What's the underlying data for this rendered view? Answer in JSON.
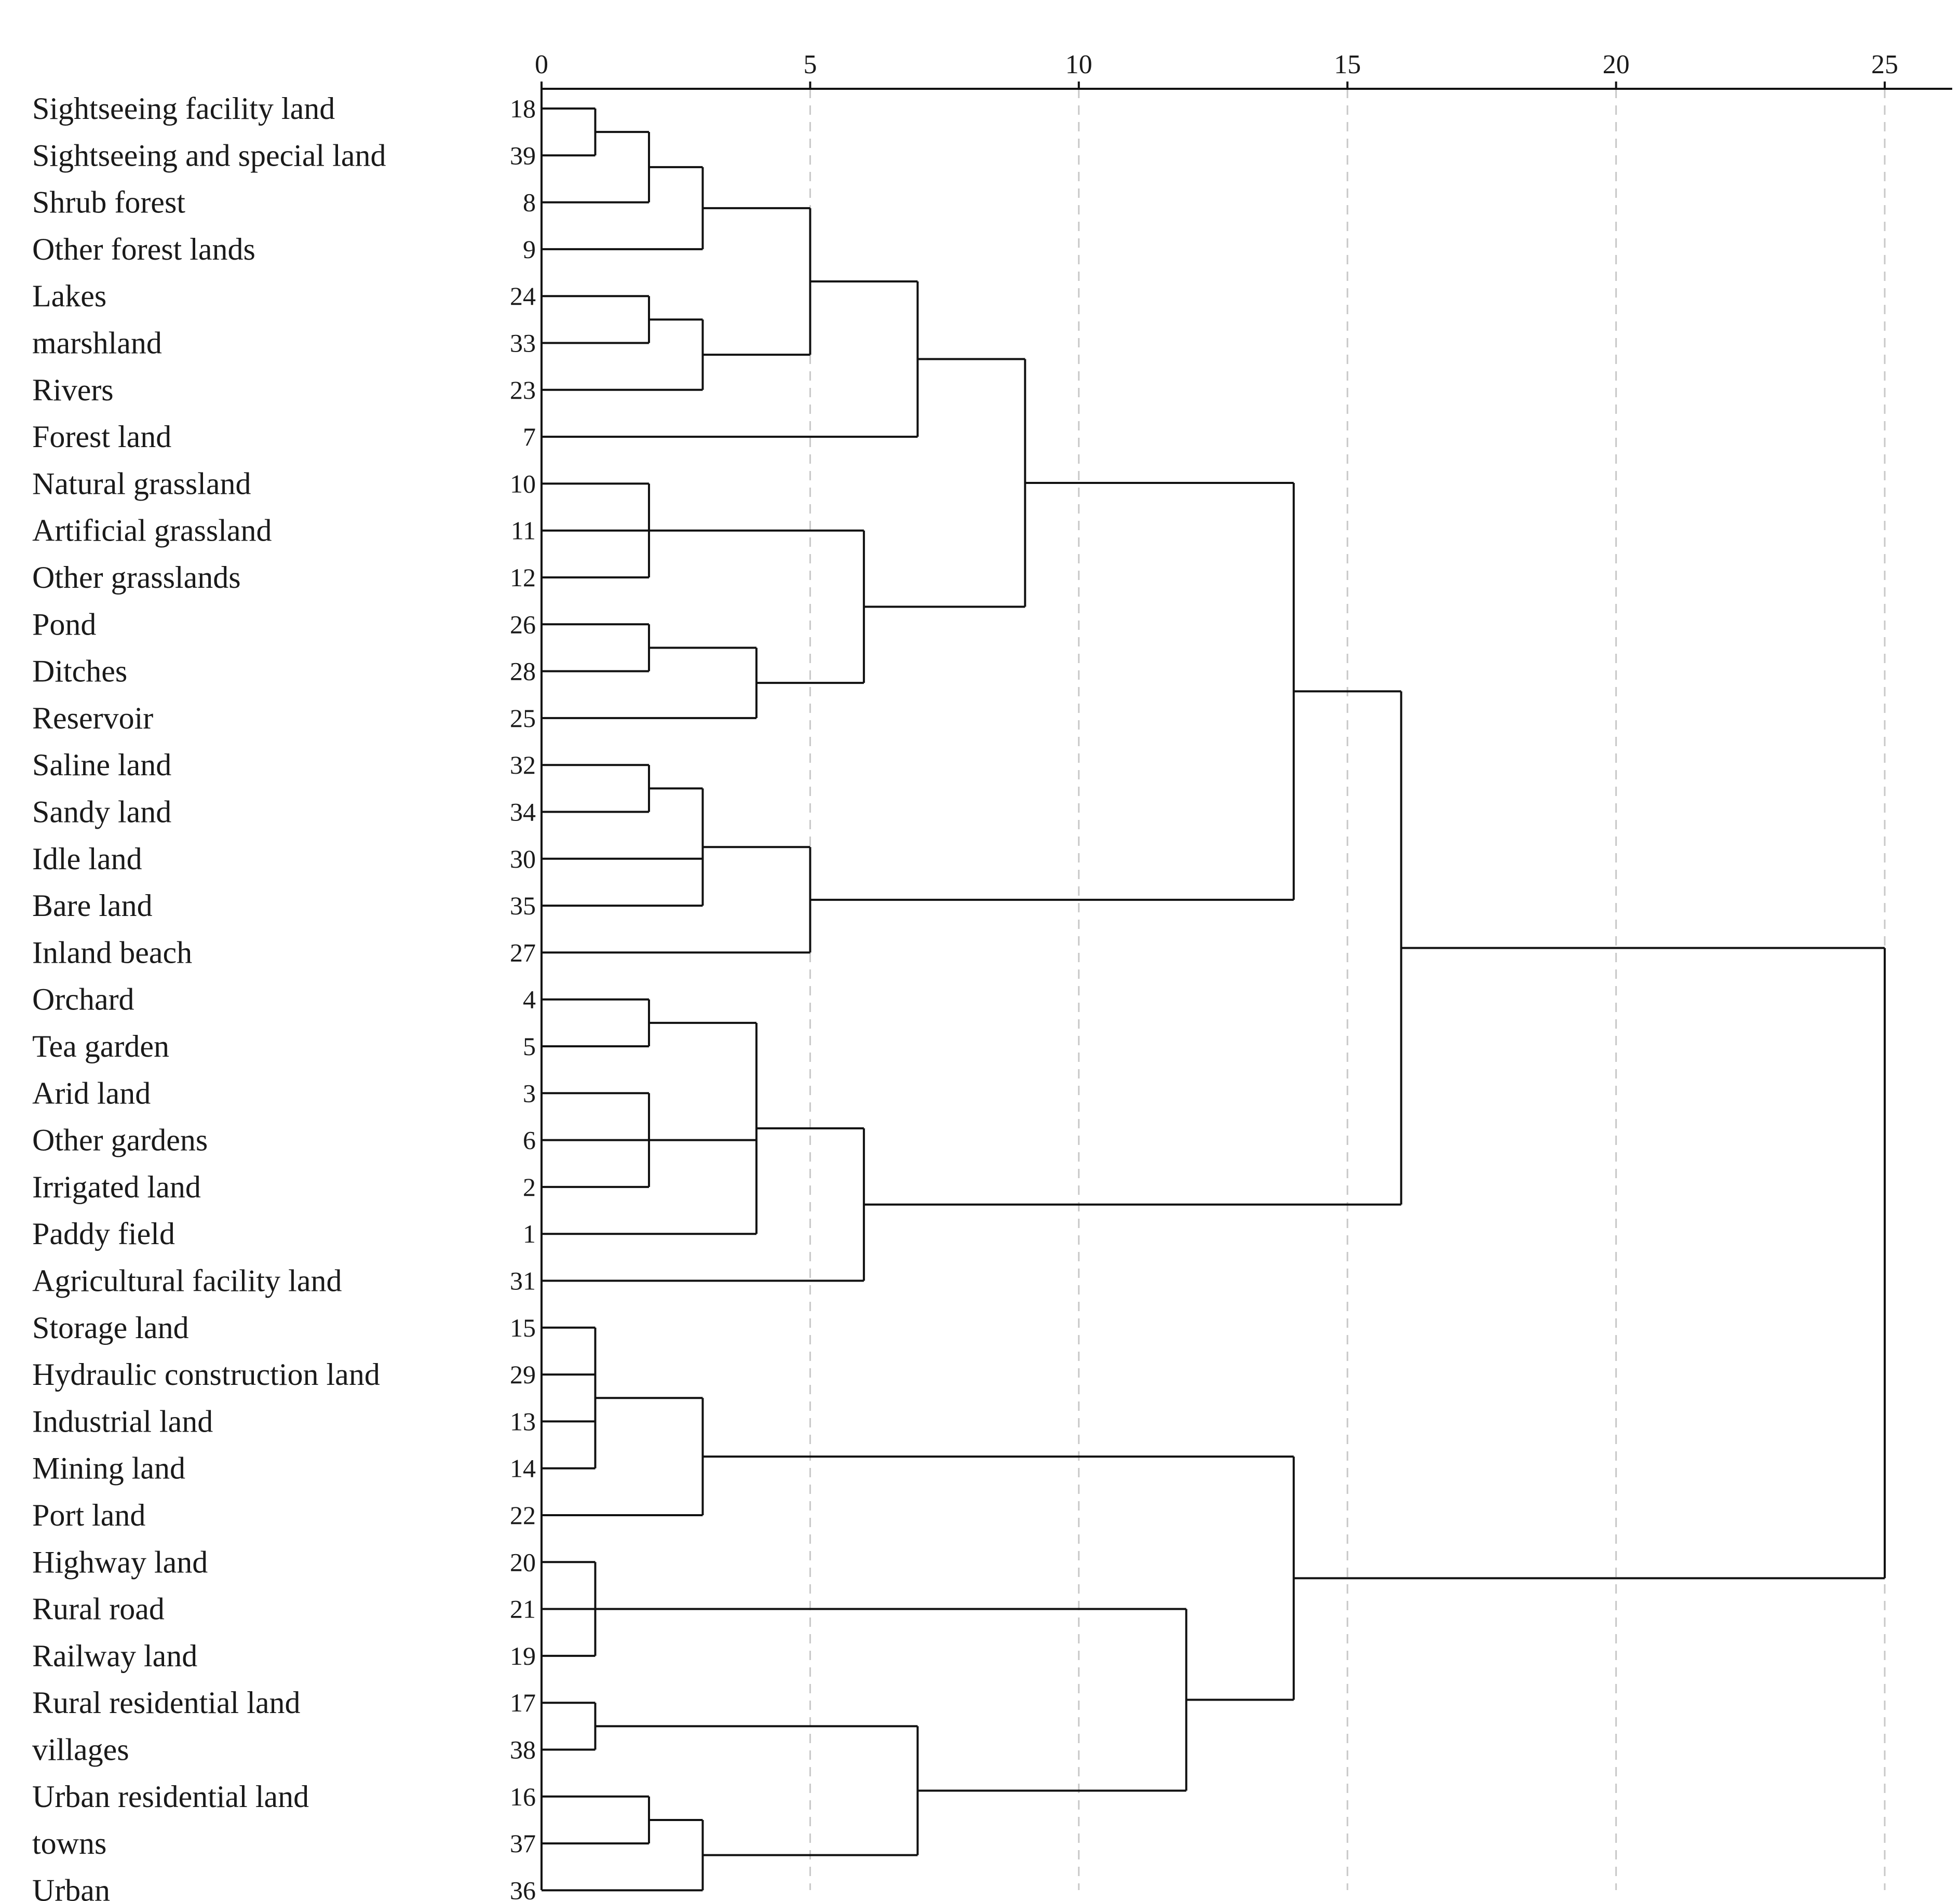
{
  "chart_data": {
    "type": "dendrogram",
    "title": "",
    "xlabel": "",
    "ylabel": "",
    "orientation": "horizontal",
    "xlim": [
      0,
      25
    ],
    "ticks": [
      0,
      5,
      10,
      15,
      20,
      25
    ],
    "grid": "vertical-dashed",
    "leaves": [
      {
        "label": "Sightseeing facility land",
        "id": "18"
      },
      {
        "label": "Sightseeing and special land",
        "id": "39"
      },
      {
        "label": "Shrub forest",
        "id": "8"
      },
      {
        "label": "Other forest lands",
        "id": "9"
      },
      {
        "label": "Lakes",
        "id": "24"
      },
      {
        "label": "marshland",
        "id": "33"
      },
      {
        "label": "Rivers",
        "id": "23"
      },
      {
        "label": "Forest land",
        "id": "7"
      },
      {
        "label": "Natural grassland",
        "id": "10"
      },
      {
        "label": "Artificial grassland",
        "id": "11"
      },
      {
        "label": "Other grasslands",
        "id": "12"
      },
      {
        "label": "Pond",
        "id": "26"
      },
      {
        "label": "Ditches",
        "id": "28"
      },
      {
        "label": "Reservoir",
        "id": "25"
      },
      {
        "label": "Saline land",
        "id": "32"
      },
      {
        "label": "Sandy land",
        "id": "34"
      },
      {
        "label": "Idle land",
        "id": "30"
      },
      {
        "label": "Bare land",
        "id": "35"
      },
      {
        "label": "Inland beach",
        "id": "27"
      },
      {
        "label": "Orchard",
        "id": "4"
      },
      {
        "label": "Tea garden",
        "id": "5"
      },
      {
        "label": "Arid land",
        "id": "3"
      },
      {
        "label": "Other gardens",
        "id": "6"
      },
      {
        "label": "Irrigated land",
        "id": "2"
      },
      {
        "label": "Paddy field",
        "id": "1"
      },
      {
        "label": "Agricultural facility land",
        "id": "31"
      },
      {
        "label": "Storage land",
        "id": "15"
      },
      {
        "label": "Hydraulic construction land",
        "id": "29"
      },
      {
        "label": "Industrial land",
        "id": "13"
      },
      {
        "label": "Mining land",
        "id": "14"
      },
      {
        "label": "Port land",
        "id": "22"
      },
      {
        "label": "Highway land",
        "id": "20"
      },
      {
        "label": "Rural road",
        "id": "21"
      },
      {
        "label": "Railway land",
        "id": "19"
      },
      {
        "label": "Rural residential land",
        "id": "17"
      },
      {
        "label": "villages",
        "id": "38"
      },
      {
        "label": "Urban residential land",
        "id": "16"
      },
      {
        "label": "towns",
        "id": "37"
      },
      {
        "label": "Urban",
        "id": "36"
      }
    ],
    "merges": [
      {
        "name": "A",
        "height": 1,
        "children": [
          "18",
          "39"
        ]
      },
      {
        "name": "B",
        "height": 2,
        "children": [
          "A",
          "8"
        ]
      },
      {
        "name": "C",
        "height": 3,
        "children": [
          "B",
          "9"
        ]
      },
      {
        "name": "D",
        "height": 2,
        "children": [
          "24",
          "33"
        ]
      },
      {
        "name": "E",
        "height": 3,
        "children": [
          "D",
          "23"
        ]
      },
      {
        "name": "F",
        "height": 5,
        "children": [
          "C",
          "E"
        ]
      },
      {
        "name": "G",
        "height": 7,
        "children": [
          "F",
          "7"
        ]
      },
      {
        "name": "H",
        "height": 2,
        "children": [
          "10",
          "11",
          "12"
        ]
      },
      {
        "name": "I",
        "height": 2,
        "children": [
          "26",
          "28"
        ]
      },
      {
        "name": "J",
        "height": 4,
        "children": [
          "I",
          "25"
        ]
      },
      {
        "name": "K",
        "height": 6,
        "children": [
          "H",
          "J"
        ]
      },
      {
        "name": "L",
        "height": 9,
        "children": [
          "G",
          "K"
        ]
      },
      {
        "name": "M",
        "height": 2,
        "children": [
          "32",
          "34"
        ]
      },
      {
        "name": "N",
        "height": 3,
        "children": [
          "M",
          "30",
          "35"
        ]
      },
      {
        "name": "O",
        "height": 5,
        "children": [
          "N",
          "27"
        ]
      },
      {
        "name": "P",
        "height": 14,
        "children": [
          "L",
          "O"
        ]
      },
      {
        "name": "Q",
        "height": 2,
        "children": [
          "4",
          "5"
        ]
      },
      {
        "name": "R",
        "height": 2,
        "children": [
          "3",
          "6",
          "2"
        ]
      },
      {
        "name": "S",
        "height": 4,
        "children": [
          "Q",
          "R",
          "1"
        ]
      },
      {
        "name": "T",
        "height": 6,
        "children": [
          "S",
          "31"
        ]
      },
      {
        "name": "U",
        "height": 16,
        "children": [
          "P",
          "T"
        ]
      },
      {
        "name": "V",
        "height": 1,
        "children": [
          "15",
          "29",
          "13",
          "14"
        ]
      },
      {
        "name": "W",
        "height": 3,
        "children": [
          "V",
          "22"
        ]
      },
      {
        "name": "X",
        "height": 1,
        "children": [
          "20",
          "21",
          "19"
        ]
      },
      {
        "name": "Y",
        "height": 1,
        "children": [
          "17",
          "38"
        ]
      },
      {
        "name": "Z",
        "height": 2,
        "children": [
          "16",
          "37"
        ]
      },
      {
        "name": "AA",
        "height": 3,
        "children": [
          "Z",
          "36"
        ]
      },
      {
        "name": "AB",
        "height": 7,
        "children": [
          "Y",
          "AA"
        ]
      },
      {
        "name": "AC",
        "height": 12,
        "children": [
          "X",
          "AB"
        ]
      },
      {
        "name": "AD",
        "height": 14,
        "children": [
          "W",
          "AC"
        ]
      },
      {
        "name": "ROOT",
        "height": 25,
        "children": [
          "U",
          "AD"
        ]
      }
    ]
  }
}
